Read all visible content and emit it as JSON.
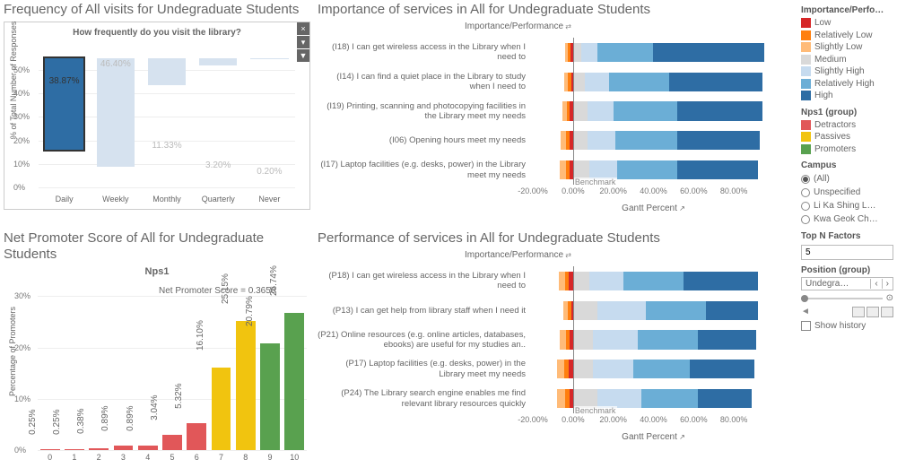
{
  "colors": {
    "low": "#d62728",
    "relLow": "#ff7f0e",
    "slLow": "#ffbb78",
    "medium": "#d9d9d9",
    "slHigh": "#c6dbef",
    "relHigh": "#6baed6",
    "high": "#2e6da4",
    "detractors": "#e15759",
    "passives": "#f1c40f",
    "promoters": "#59a14f",
    "freqSelected": "#2e6da4",
    "freqOther": "#d6e2ef",
    "grid": "#e8e8e8"
  },
  "freq": {
    "title": "Frequency of All visits for Undegraduate Students",
    "subtitle": "How frequently do you visit the library?",
    "yAxisLabel": "% of Total Number of Responses",
    "ymax": 55,
    "yticks": [
      0,
      10,
      20,
      30,
      40,
      50
    ],
    "bars": [
      {
        "cat": "Daily",
        "val": 38.87,
        "label": "38.87%",
        "color": "#2e6da4",
        "selected": true
      },
      {
        "cat": "Weekly",
        "val": 46.4,
        "label": "46.40%",
        "color": "#d6e2ef"
      },
      {
        "cat": "Monthly",
        "val": 11.33,
        "label": "11.33%",
        "color": "#d6e2ef"
      },
      {
        "cat": "Quarterly",
        "val": 3.2,
        "label": "3.20%",
        "color": "#d6e2ef"
      },
      {
        "cat": "Never",
        "val": 0.2,
        "label": "0.20%",
        "color": "#d6e2ef"
      }
    ]
  },
  "nps": {
    "title": "Net Promoter Score of All for Undegraduate Students",
    "subtitle": "Nps1",
    "yAxisLabel": "Percentage of Promoters",
    "scoreLabel": "Net Promoter Score = 0.3650",
    "ymax": 32,
    "yticks": [
      0,
      10,
      20,
      30
    ],
    "bars": [
      {
        "cat": "0",
        "val": 0.25,
        "label": "0.25%",
        "color": "#e15759"
      },
      {
        "cat": "1",
        "val": 0.25,
        "label": "0.25%",
        "color": "#e15759"
      },
      {
        "cat": "2",
        "val": 0.38,
        "label": "0.38%",
        "color": "#e15759"
      },
      {
        "cat": "3",
        "val": 0.89,
        "label": "0.89%",
        "color": "#e15759"
      },
      {
        "cat": "4",
        "val": 0.89,
        "label": "0.89%",
        "color": "#e15759"
      },
      {
        "cat": "5",
        "val": 3.04,
        "label": "3.04%",
        "color": "#e15759"
      },
      {
        "cat": "6",
        "val": 5.32,
        "label": "5.32%",
        "color": "#e15759"
      },
      {
        "cat": "7",
        "val": 16.1,
        "label": "16.10%",
        "color": "#f1c40f"
      },
      {
        "cat": "8",
        "val": 25.15,
        "label": "25.15%",
        "color": "#f1c40f"
      },
      {
        "cat": "9",
        "val": 20.79,
        "label": "20.79%",
        "color": "#59a14f"
      },
      {
        "cat": "10",
        "val": 26.74,
        "label": "26.74%",
        "color": "#59a14f"
      }
    ]
  },
  "importance": {
    "title": "Importance of services in All for Undegraduate Students",
    "subtitle": "Importance/Performance",
    "xAxisLabel": "Gantt Percent",
    "xmin": -20,
    "xmax": 100,
    "xticks": [
      {
        "v": -20,
        "l": "-20.00%"
      },
      {
        "v": 0,
        "l": "0.00%"
      },
      {
        "v": 20,
        "l": "20.00%"
      },
      {
        "v": 40,
        "l": "40.00%"
      },
      {
        "v": 60,
        "l": "60.00%"
      },
      {
        "v": 80,
        "l": "80.00%"
      }
    ],
    "benchLabel": "Benchmark",
    "rows": [
      {
        "label": "(I18) I can get wireless access in the Library when I need to",
        "neg": [
          {
            "c": "low",
            "w": 1.5
          },
          {
            "c": "relLow",
            "w": 1
          },
          {
            "c": "slLow",
            "w": 1.5
          }
        ],
        "pos": [
          {
            "c": "medium",
            "w": 4
          },
          {
            "c": "slHigh",
            "w": 8
          },
          {
            "c": "relHigh",
            "w": 28
          },
          {
            "c": "high",
            "w": 55
          }
        ]
      },
      {
        "label": "(I14) I can find a quiet place in the Library to study when I need to",
        "neg": [
          {
            "c": "low",
            "w": 1
          },
          {
            "c": "relLow",
            "w": 1.5
          },
          {
            "c": "slLow",
            "w": 2
          }
        ],
        "pos": [
          {
            "c": "medium",
            "w": 6
          },
          {
            "c": "slHigh",
            "w": 12
          },
          {
            "c": "relHigh",
            "w": 30
          },
          {
            "c": "high",
            "w": 46
          }
        ]
      },
      {
        "label": "(I19) Printing, scanning and photocopying facilities in the Library meet my needs",
        "neg": [
          {
            "c": "low",
            "w": 1.5
          },
          {
            "c": "relLow",
            "w": 1.5
          },
          {
            "c": "slLow",
            "w": 2.5
          }
        ],
        "pos": [
          {
            "c": "medium",
            "w": 7
          },
          {
            "c": "slHigh",
            "w": 13
          },
          {
            "c": "relHigh",
            "w": 32
          },
          {
            "c": "high",
            "w": 42
          }
        ]
      },
      {
        "label": "(I06) Opening hours meet my needs",
        "neg": [
          {
            "c": "low",
            "w": 1.5
          },
          {
            "c": "relLow",
            "w": 2
          },
          {
            "c": "slLow",
            "w": 2.5
          }
        ],
        "pos": [
          {
            "c": "medium",
            "w": 7
          },
          {
            "c": "slHigh",
            "w": 14
          },
          {
            "c": "relHigh",
            "w": 31
          },
          {
            "c": "high",
            "w": 41
          }
        ]
      },
      {
        "label": "(I17) Laptop facilities (e.g. desks, power) in the Library meet my needs",
        "neg": [
          {
            "c": "low",
            "w": 1.5
          },
          {
            "c": "relLow",
            "w": 2
          },
          {
            "c": "slLow",
            "w": 3
          }
        ],
        "pos": [
          {
            "c": "medium",
            "w": 8
          },
          {
            "c": "slHigh",
            "w": 14
          },
          {
            "c": "relHigh",
            "w": 30
          },
          {
            "c": "high",
            "w": 40
          }
        ]
      }
    ]
  },
  "performance": {
    "title": "Performance of services in All for Undegraduate Students",
    "subtitle": "Importance/Performance",
    "xAxisLabel": "Gantt Percent",
    "xmin": -20,
    "xmax": 100,
    "xticks": [
      {
        "v": -20,
        "l": "-20.00%"
      },
      {
        "v": 0,
        "l": "0.00%"
      },
      {
        "v": 20,
        "l": "20.00%"
      },
      {
        "v": 40,
        "l": "40.00%"
      },
      {
        "v": 60,
        "l": "60.00%"
      },
      {
        "v": 80,
        "l": "80.00%"
      }
    ],
    "benchLabel": "Benchmark",
    "rows": [
      {
        "label": "(P18) I can get wireless access in the Library when I need to",
        "neg": [
          {
            "c": "low",
            "w": 2
          },
          {
            "c": "relLow",
            "w": 2
          },
          {
            "c": "slLow",
            "w": 3
          }
        ],
        "pos": [
          {
            "c": "medium",
            "w": 8
          },
          {
            "c": "slHigh",
            "w": 17
          },
          {
            "c": "relHigh",
            "w": 30
          },
          {
            "c": "high",
            "w": 37
          }
        ]
      },
      {
        "label": "(P13) I can get help from library staff when I need it",
        "neg": [
          {
            "c": "low",
            "w": 1
          },
          {
            "c": "relLow",
            "w": 1.5
          },
          {
            "c": "slLow",
            "w": 2.5
          }
        ],
        "pos": [
          {
            "c": "medium",
            "w": 12
          },
          {
            "c": "slHigh",
            "w": 24
          },
          {
            "c": "relHigh",
            "w": 30
          },
          {
            "c": "high",
            "w": 26
          }
        ]
      },
      {
        "label": "(P21) Online resources (e.g. online articles, databases, ebooks) are useful for my studies an..",
        "neg": [
          {
            "c": "low",
            "w": 1.5
          },
          {
            "c": "relLow",
            "w": 2
          },
          {
            "c": "slLow",
            "w": 3
          }
        ],
        "pos": [
          {
            "c": "medium",
            "w": 10
          },
          {
            "c": "slHigh",
            "w": 22
          },
          {
            "c": "relHigh",
            "w": 30
          },
          {
            "c": "high",
            "w": 29
          }
        ]
      },
      {
        "label": "(P17) Laptop facilities (e.g. desks, power) in the Library meet my needs",
        "neg": [
          {
            "c": "low",
            "w": 2
          },
          {
            "c": "relLow",
            "w": 2.5
          },
          {
            "c": "slLow",
            "w": 3.5
          }
        ],
        "pos": [
          {
            "c": "medium",
            "w": 10
          },
          {
            "c": "slHigh",
            "w": 20
          },
          {
            "c": "relHigh",
            "w": 28
          },
          {
            "c": "high",
            "w": 32
          }
        ]
      },
      {
        "label": "(P24) The Library search engine enables me find relevant library resources quickly",
        "neg": [
          {
            "c": "low",
            "w": 1.5
          },
          {
            "c": "relLow",
            "w": 2.5
          },
          {
            "c": "slLow",
            "w": 4
          }
        ],
        "pos": [
          {
            "c": "medium",
            "w": 12
          },
          {
            "c": "slHigh",
            "w": 22
          },
          {
            "c": "relHigh",
            "w": 28
          },
          {
            "c": "high",
            "w": 27
          }
        ]
      }
    ]
  },
  "sidebar": {
    "legend1Title": "Importance/Perfo…",
    "legend1": [
      {
        "c": "low",
        "l": "Low"
      },
      {
        "c": "relLow",
        "l": "Relatively Low"
      },
      {
        "c": "slLow",
        "l": "Slightly Low"
      },
      {
        "c": "medium",
        "l": "Medium"
      },
      {
        "c": "slHigh",
        "l": "Slightly High"
      },
      {
        "c": "relHigh",
        "l": "Relatively High"
      },
      {
        "c": "high",
        "l": "High"
      }
    ],
    "legend2Title": "Nps1 (group)",
    "legend2": [
      {
        "c": "detractors",
        "l": "Detractors"
      },
      {
        "c": "passives",
        "l": "Passives"
      },
      {
        "c": "promoters",
        "l": "Promoters"
      }
    ],
    "campusTitle": "Campus",
    "campus": [
      {
        "l": "(All)",
        "sel": true
      },
      {
        "l": "Unspecified"
      },
      {
        "l": "Li Ka Shing L…"
      },
      {
        "l": "Kwa Geok Ch…"
      }
    ],
    "topNLabel": "Top N Factors",
    "topNValue": "5",
    "positionLabel": "Position (group)",
    "positionValue": "Undegra…",
    "showHistory": "Show history"
  }
}
